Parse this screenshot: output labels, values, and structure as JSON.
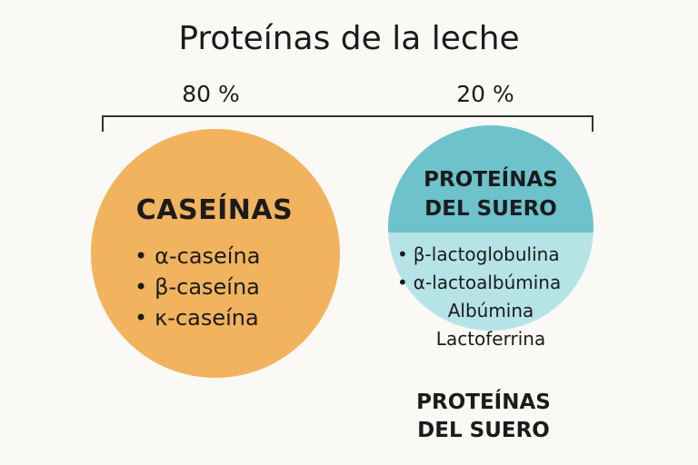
{
  "title": "Proteínas de la leche",
  "split": {
    "left_percent": "80 %",
    "right_percent": "20 %"
  },
  "caseins": {
    "heading": "CASEÍNAS",
    "items": [
      "α-caseína",
      "β-caseína",
      "κ-caseína"
    ],
    "color": "#f1b35e"
  },
  "whey": {
    "heading_line1": "PROTEÍNAS",
    "heading_line2": "DEL SUERO",
    "bullet_items": [
      "β-lactoglobulina",
      "α-lactoalbúmina"
    ],
    "plain_items": [
      "Albúmina",
      "Lactoferrina"
    ],
    "top_color": "#6dc2cc",
    "bottom_color": "#b6e3e6",
    "caption_line1": "PROTEÍNAS",
    "caption_line2": "DEL SUERO"
  },
  "colors": {
    "background": "#fbf9f5",
    "text": "#1b1b1b",
    "bracket": "#333333"
  }
}
